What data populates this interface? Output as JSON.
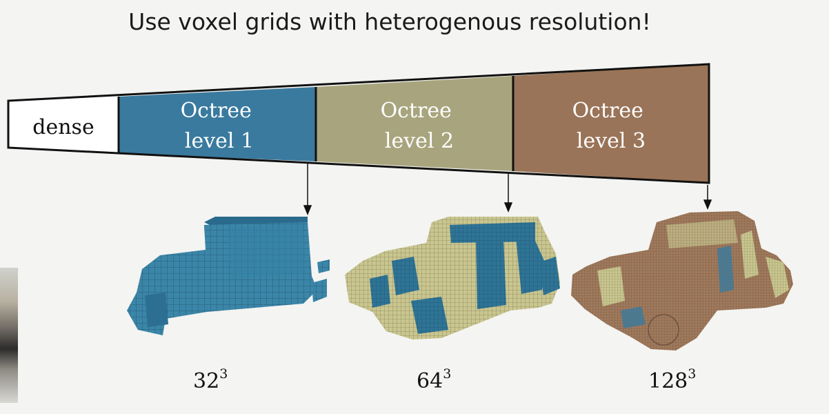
{
  "title": "Use voxel grids with heterogenous resolution!",
  "bar": {
    "segments": [
      {
        "id": "dense",
        "line1": "dense",
        "line2": "",
        "fill": "#ffffff",
        "text_color": "#111111"
      },
      {
        "id": "level1",
        "line1": "Octree",
        "line2": "level 1",
        "fill": "#3a7a9e",
        "text_color": "#ffffff"
      },
      {
        "id": "level2",
        "line1": "Octree",
        "line2": "level 2",
        "fill": "#a8a57e",
        "text_color": "#ffffff"
      },
      {
        "id": "level3",
        "line1": "Octree",
        "line2": "level 3",
        "fill": "#9a7458",
        "text_color": "#ffffff"
      }
    ]
  },
  "models": [
    {
      "id": "car-32",
      "base": "32",
      "exp": "3",
      "voxel_colors": [
        "#2f7496",
        "#3b86a8"
      ]
    },
    {
      "id": "car-64",
      "base": "64",
      "exp": "3",
      "voxel_colors": [
        "#2f7496",
        "#c9c690"
      ]
    },
    {
      "id": "car-128",
      "base": "128",
      "exp": "3",
      "voxel_colors": [
        "#a07a5c",
        "#c9c690",
        "#3a7a9e"
      ]
    }
  ],
  "colors": {
    "outline": "#111111",
    "background": "#f4f4f2"
  }
}
